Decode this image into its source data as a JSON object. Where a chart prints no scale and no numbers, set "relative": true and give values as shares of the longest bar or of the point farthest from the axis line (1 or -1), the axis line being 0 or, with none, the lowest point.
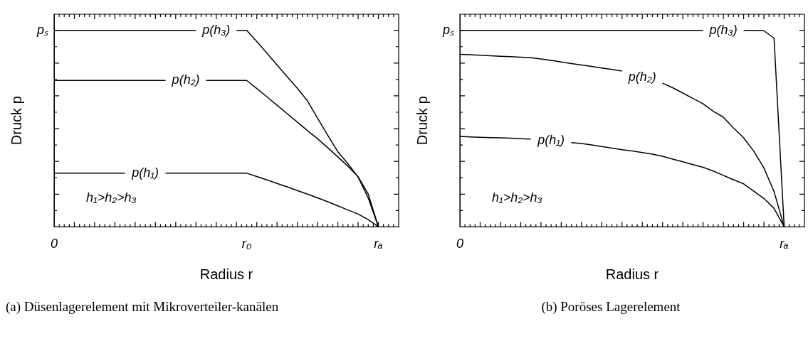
{
  "chart_data": [
    {
      "type": "line",
      "relative": true,
      "title": "(a) Düsenlagerelement mit Mikroverteiler-kanälen",
      "xlabel": "Radius r",
      "ylabel": "Druck p",
      "marker": "none",
      "annotations": [
        "h₁>h₂>h₃",
        "pₛ"
      ],
      "categories": [
        "0",
        null,
        null,
        null,
        null,
        null,
        null,
        null,
        null,
        null,
        null,
        null,
        null,
        null,
        null,
        null,
        null,
        null,
        null,
        "r₀",
        null,
        null,
        null,
        null,
        null,
        null,
        null,
        null,
        null,
        null,
        null,
        null,
        "rₐ",
        null,
        null
      ],
      "series": [
        {
          "name": "p(h₁)",
          "color": "#000000",
          "values": [
            0.273,
            0.273,
            0.273,
            0.273,
            0.273,
            0.273,
            0.273,
            0.273,
            null,
            null,
            null,
            0.273,
            0.273,
            0.273,
            0.273,
            0.273,
            0.273,
            0.273,
            0.273,
            0.273,
            0.256,
            0.239,
            0.221,
            0.204,
            0.185,
            0.167,
            0.148,
            0.128,
            0.107,
            0.086,
            0.065,
            0.037,
            0,
            null,
            null
          ]
        },
        {
          "name": "p(h₂)",
          "color": "#000000",
          "values": [
            0.745,
            0.745,
            0.745,
            0.745,
            0.745,
            0.745,
            0.745,
            0.745,
            0.745,
            0.745,
            0.745,
            0.745,
            null,
            null,
            null,
            0.745,
            0.745,
            0.745,
            0.745,
            0.745,
            0.704,
            0.662,
            0.619,
            0.576,
            0.533,
            0.49,
            0.448,
            0.403,
            0.356,
            0.308,
            0.255,
            0.167,
            0,
            null,
            null
          ]
        },
        {
          "name": "p(h₃)",
          "color": "#000000",
          "values": [
            1,
            1,
            1,
            1,
            1,
            1,
            1,
            1,
            1,
            1,
            1,
            1,
            1,
            1,
            1,
            null,
            null,
            null,
            1,
            1,
            0.943,
            0.884,
            0.824,
            0.764,
            0.705,
            0.641,
            0.553,
            0.466,
            0.382,
            0.321,
            0.253,
            0.147,
            0,
            null,
            null
          ]
        }
      ]
    },
    {
      "type": "line",
      "relative": true,
      "title": "(b) Poröses Lagerelement",
      "xlabel": "Radius r",
      "ylabel": "Druck p",
      "marker": "none",
      "annotations": [
        "h₁>h₂>h₃",
        "pₛ"
      ],
      "categories": [
        "0",
        null,
        null,
        null,
        null,
        null,
        null,
        null,
        null,
        null,
        null,
        null,
        null,
        null,
        null,
        null,
        null,
        null,
        null,
        null,
        null,
        null,
        null,
        null,
        null,
        null,
        null,
        null,
        null,
        null,
        null,
        null,
        "rₐ",
        null,
        null
      ],
      "series": [
        {
          "name": "p(h₁)",
          "color": "#000000",
          "values": [
            0.46,
            0.458,
            0.456,
            0.454,
            0.453,
            0.451,
            0.449,
            0.447,
            null,
            null,
            null,
            0.429,
            0.424,
            0.417,
            0.409,
            0.401,
            0.393,
            0.386,
            0.378,
            0.37,
            0.359,
            0.345,
            0.331,
            0.317,
            0.303,
            0.284,
            0.262,
            0.24,
            0.219,
            0.182,
            0.145,
            0.094,
            0,
            null,
            null
          ]
        },
        {
          "name": "p(h₂)",
          "color": "#000000",
          "values": [
            0.878,
            0.876,
            0.873,
            0.871,
            0.868,
            0.866,
            0.863,
            0.861,
            0.854,
            0.847,
            0.839,
            0.831,
            0.824,
            0.816,
            0.808,
            0.801,
            0.793,
            null,
            null,
            null,
            0.731,
            0.708,
            0.681,
            0.653,
            0.626,
            0.588,
            0.558,
            0.503,
            0.453,
            0.385,
            0.3,
            0.18,
            0,
            null,
            null
          ]
        },
        {
          "name": "p(h₃)",
          "color": "#000000",
          "values": [
            1,
            1,
            1,
            1,
            1,
            1,
            1,
            1,
            1,
            1,
            1,
            1,
            1,
            1,
            1,
            1,
            1,
            1,
            1,
            1,
            1,
            1,
            1,
            1,
            1,
            null,
            null,
            null,
            1,
            1,
            0.998,
            0.96,
            0,
            null,
            null
          ]
        }
      ]
    }
  ]
}
